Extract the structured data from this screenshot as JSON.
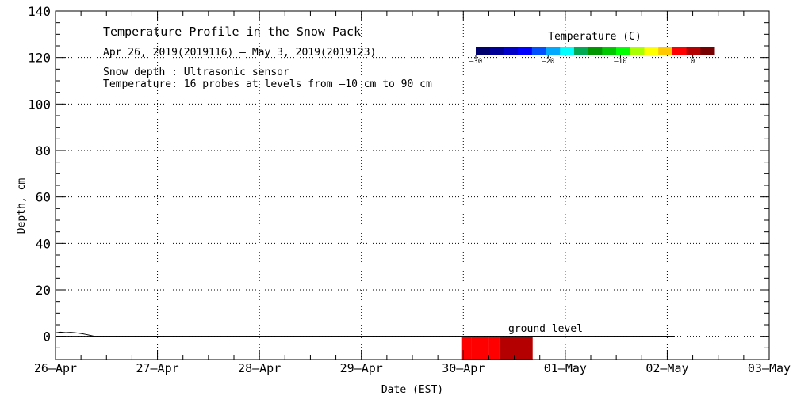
{
  "chart_data": {
    "type": "heatmap",
    "title": "Temperature Profile in the Snow Pack",
    "subtitle": "Apr 26, 2019(2019116) – May  3, 2019(2019123)",
    "notes": [
      "Snow depth : Ultrasonic sensor",
      "Temperature: 16 probes at levels from –10 cm to 90 cm"
    ],
    "xlabel": "Date (EST)",
    "ylabel": "Depth, cm",
    "x_ticks": [
      "26–Apr",
      "27–Apr",
      "28–Apr",
      "29–Apr",
      "30–Apr",
      "01–May",
      "02–May",
      "03–May"
    ],
    "x_range_days": [
      0,
      7
    ],
    "y_ticks": [
      "0",
      "20",
      "40",
      "60",
      "80",
      "100",
      "120",
      "140"
    ],
    "ylim": [
      -10,
      140
    ],
    "grid": true,
    "colorbar": {
      "title": "Temperature (C)",
      "range": [
        -30,
        3
      ],
      "tick_labels": [
        "–30",
        "–20",
        "–10",
        "0"
      ],
      "tick_values": [
        -30,
        -20,
        -10,
        0
      ],
      "colors": [
        "#00006e",
        "#000096",
        "#0000c8",
        "#0000ff",
        "#0050ff",
        "#00aaff",
        "#00ffff",
        "#00aa55",
        "#009600",
        "#00c800",
        "#00ff00",
        "#aaff00",
        "#ffff00",
        "#ffc800",
        "#ff0000",
        "#b40000",
        "#780000"
      ]
    },
    "annotation": {
      "text": "ground level",
      "y": 0
    },
    "ground_line": {
      "x_range": [
        0,
        6.07
      ],
      "y": 0
    },
    "snow_depth": [
      [
        0,
        1.5
      ],
      [
        0.05,
        1.8
      ],
      [
        0.1,
        1.6
      ],
      [
        0.15,
        1.7
      ],
      [
        0.2,
        1.5
      ],
      [
        0.25,
        1.2
      ],
      [
        0.3,
        0.8
      ],
      [
        0.35,
        0.3
      ],
      [
        0.38,
        0
      ],
      [
        6.07,
        0
      ]
    ],
    "temperature_field": {
      "x_range": [
        3.98,
        4.68
      ],
      "y_range": [
        -10,
        0
      ],
      "cells": [
        {
          "x": [
            3.98,
            4.08
          ],
          "y": [
            -10,
            0
          ],
          "t": -1
        },
        {
          "x": [
            4.08,
            4.25
          ],
          "y": [
            -5,
            0
          ],
          "t": -2
        },
        {
          "x": [
            4.08,
            4.25
          ],
          "y": [
            -10,
            -5
          ],
          "t": -1
        },
        {
          "x": [
            4.25,
            4.35
          ],
          "y": [
            -10,
            0
          ],
          "t": -1
        },
        {
          "x": [
            4.35,
            4.68
          ],
          "y": [
            -10,
            0
          ],
          "t": 1
        }
      ]
    }
  }
}
